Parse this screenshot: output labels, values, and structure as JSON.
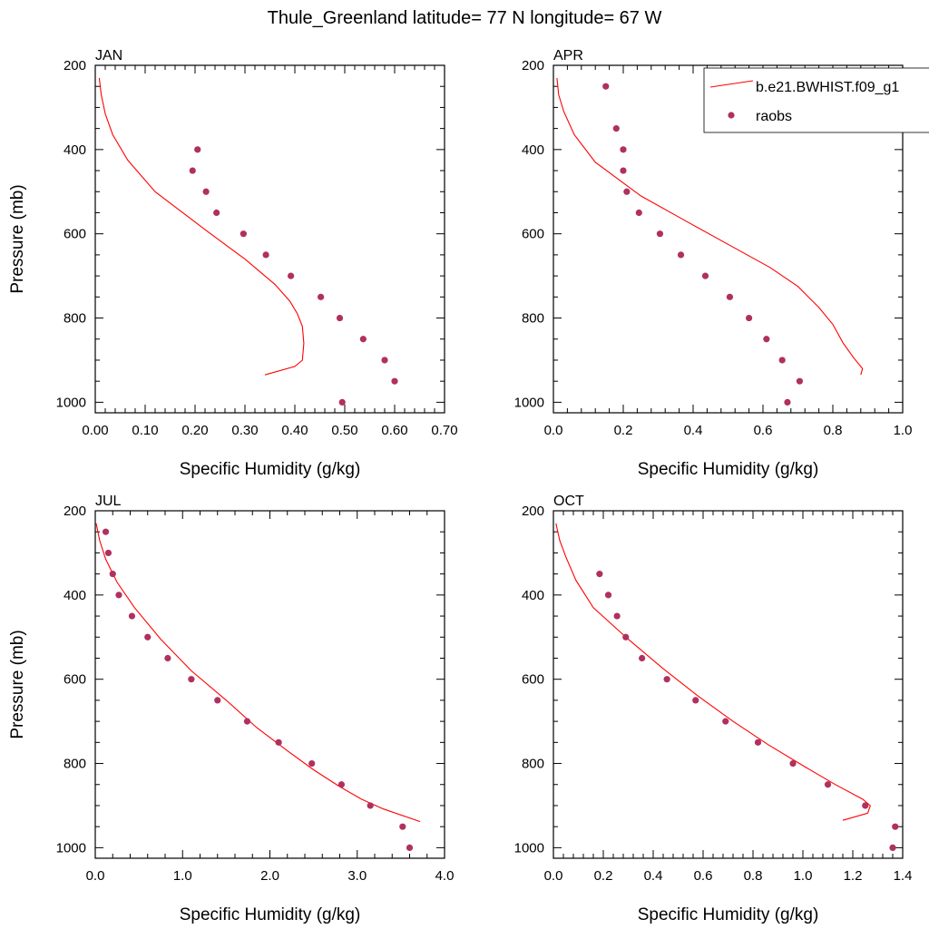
{
  "title": "Thule_Greenland  latitude= 77 N longitude= 67 W",
  "colors": {
    "model_line": "#ff0000",
    "obs_marker": "#b03060",
    "axis": "#000000",
    "background": "#ffffff"
  },
  "legend": {
    "model_label": "b.e21.BWHIST.f09_g1",
    "obs_label": "raobs"
  },
  "chart_data": [
    {
      "type": "line",
      "title": "JAN",
      "xlabel": "Specific Humidity (g/kg)",
      "ylabel": "Pressure (mb)",
      "xlim": [
        0,
        0.7
      ],
      "ylim": [
        1025,
        200
      ],
      "xticks": [
        0,
        0.1,
        0.2,
        0.3,
        0.4,
        0.5,
        0.6,
        0.7
      ],
      "xtick_labels": [
        "0.00",
        "0.10",
        "0.20",
        "0.30",
        "0.40",
        "0.50",
        "0.60",
        "0.70"
      ],
      "yticks": [
        200,
        400,
        600,
        800,
        1000
      ],
      "ytick_labels": [
        "200",
        "400",
        "600",
        "800",
        "1000"
      ],
      "series": [
        {
          "name": "b.e21.BWHIST.f09_g1",
          "kind": "line",
          "x": [
            0.34,
            0.4,
            0.415,
            0.418,
            0.415,
            0.405,
            0.39,
            0.36,
            0.3,
            0.22,
            0.12,
            0.065,
            0.035,
            0.02,
            0.012,
            0.008
          ],
          "y": [
            935,
            915,
            900,
            860,
            820,
            790,
            760,
            720,
            660,
            590,
            500,
            425,
            365,
            315,
            270,
            230
          ]
        },
        {
          "name": "raobs",
          "kind": "scatter",
          "x": [
            0.205,
            0.195,
            0.222,
            0.243,
            0.297,
            0.342,
            0.392,
            0.452,
            0.49,
            0.537,
            0.58,
            0.6,
            0.495
          ],
          "y": [
            400,
            450,
            500,
            550,
            600,
            650,
            700,
            750,
            800,
            850,
            900,
            950,
            1000
          ]
        }
      ]
    },
    {
      "type": "line",
      "title": "APR",
      "xlabel": "Specific Humidity (g/kg)",
      "ylabel": "",
      "xlim": [
        0,
        1.0
      ],
      "ylim": [
        1025,
        200
      ],
      "xticks": [
        0,
        0.2,
        0.4,
        0.6,
        0.8,
        1.0
      ],
      "xtick_labels": [
        "0.0",
        "0.2",
        "0.4",
        "0.6",
        "0.8",
        "1.0"
      ],
      "yticks": [
        200,
        400,
        600,
        800,
        1000
      ],
      "ytick_labels": [
        "200",
        "400",
        "600",
        "800",
        "1000"
      ],
      "series": [
        {
          "name": "b.e21.BWHIST.f09_g1",
          "kind": "line",
          "x": [
            0.88,
            0.885,
            0.86,
            0.83,
            0.8,
            0.76,
            0.7,
            0.62,
            0.5,
            0.38,
            0.25,
            0.12,
            0.06,
            0.03,
            0.015,
            0.01
          ],
          "y": [
            935,
            920,
            895,
            860,
            815,
            775,
            725,
            680,
            625,
            570,
            510,
            430,
            365,
            310,
            270,
            230
          ]
        },
        {
          "name": "raobs",
          "kind": "scatter",
          "x": [
            0.15,
            0.18,
            0.2,
            0.2,
            0.21,
            0.245,
            0.305,
            0.365,
            0.435,
            0.505,
            0.56,
            0.61,
            0.655,
            0.705,
            0.67
          ],
          "y": [
            250,
            350,
            400,
            450,
            500,
            550,
            600,
            650,
            700,
            750,
            800,
            850,
            900,
            950,
            1000
          ]
        }
      ]
    },
    {
      "type": "line",
      "title": "JUL",
      "xlabel": "Specific Humidity (g/kg)",
      "ylabel": "Pressure (mb)",
      "xlim": [
        0,
        4.0
      ],
      "ylim": [
        1025,
        200
      ],
      "xticks": [
        0,
        1,
        2,
        3,
        4
      ],
      "xtick_labels": [
        "0.0",
        "1.0",
        "2.0",
        "3.0",
        "4.0"
      ],
      "yticks": [
        200,
        400,
        600,
        800,
        1000
      ],
      "ytick_labels": [
        "200",
        "400",
        "600",
        "800",
        "1000"
      ],
      "series": [
        {
          "name": "b.e21.BWHIST.f09_g1",
          "kind": "line",
          "x": [
            3.72,
            3.3,
            3.05,
            2.8,
            2.5,
            2.2,
            1.85,
            1.5,
            1.1,
            0.75,
            0.45,
            0.25,
            0.12,
            0.05,
            0.01
          ],
          "y": [
            938,
            908,
            885,
            855,
            815,
            770,
            715,
            650,
            580,
            505,
            430,
            370,
            315,
            270,
            230
          ]
        },
        {
          "name": "raobs",
          "kind": "scatter",
          "x": [
            0.12,
            0.15,
            0.2,
            0.27,
            0.42,
            0.6,
            0.83,
            1.1,
            1.4,
            1.74,
            2.1,
            2.48,
            2.82,
            3.15,
            3.52,
            3.6
          ],
          "y": [
            250,
            300,
            350,
            400,
            450,
            500,
            550,
            600,
            650,
            700,
            750,
            800,
            850,
            900,
            950,
            1000
          ]
        }
      ]
    },
    {
      "type": "line",
      "title": "OCT",
      "xlabel": "Specific Humidity (g/kg)",
      "ylabel": "",
      "xlim": [
        0,
        1.4
      ],
      "ylim": [
        1025,
        200
      ],
      "xticks": [
        0,
        0.2,
        0.4,
        0.6,
        0.8,
        1.0,
        1.2,
        1.4
      ],
      "xtick_labels": [
        "0.0",
        "0.2",
        "0.4",
        "0.6",
        "0.8",
        "1.0",
        "1.2",
        "1.4"
      ],
      "yticks": [
        200,
        400,
        600,
        800,
        1000
      ],
      "ytick_labels": [
        "200",
        "400",
        "600",
        "800",
        "1000"
      ],
      "series": [
        {
          "name": "b.e21.BWHIST.f09_g1",
          "kind": "line",
          "x": [
            1.16,
            1.26,
            1.27,
            1.24,
            1.13,
            1.0,
            0.86,
            0.72,
            0.58,
            0.44,
            0.3,
            0.16,
            0.09,
            0.05,
            0.025,
            0.01
          ],
          "y": [
            935,
            918,
            900,
            885,
            850,
            805,
            755,
            700,
            640,
            575,
            505,
            430,
            365,
            310,
            270,
            230
          ]
        },
        {
          "name": "raobs",
          "kind": "scatter",
          "x": [
            0.185,
            0.22,
            0.255,
            0.29,
            0.355,
            0.455,
            0.57,
            0.69,
            0.82,
            0.96,
            1.1,
            1.25,
            1.37,
            1.36
          ],
          "y": [
            350,
            400,
            450,
            500,
            550,
            600,
            650,
            700,
            750,
            800,
            850,
            900,
            950,
            1000
          ]
        }
      ]
    }
  ]
}
